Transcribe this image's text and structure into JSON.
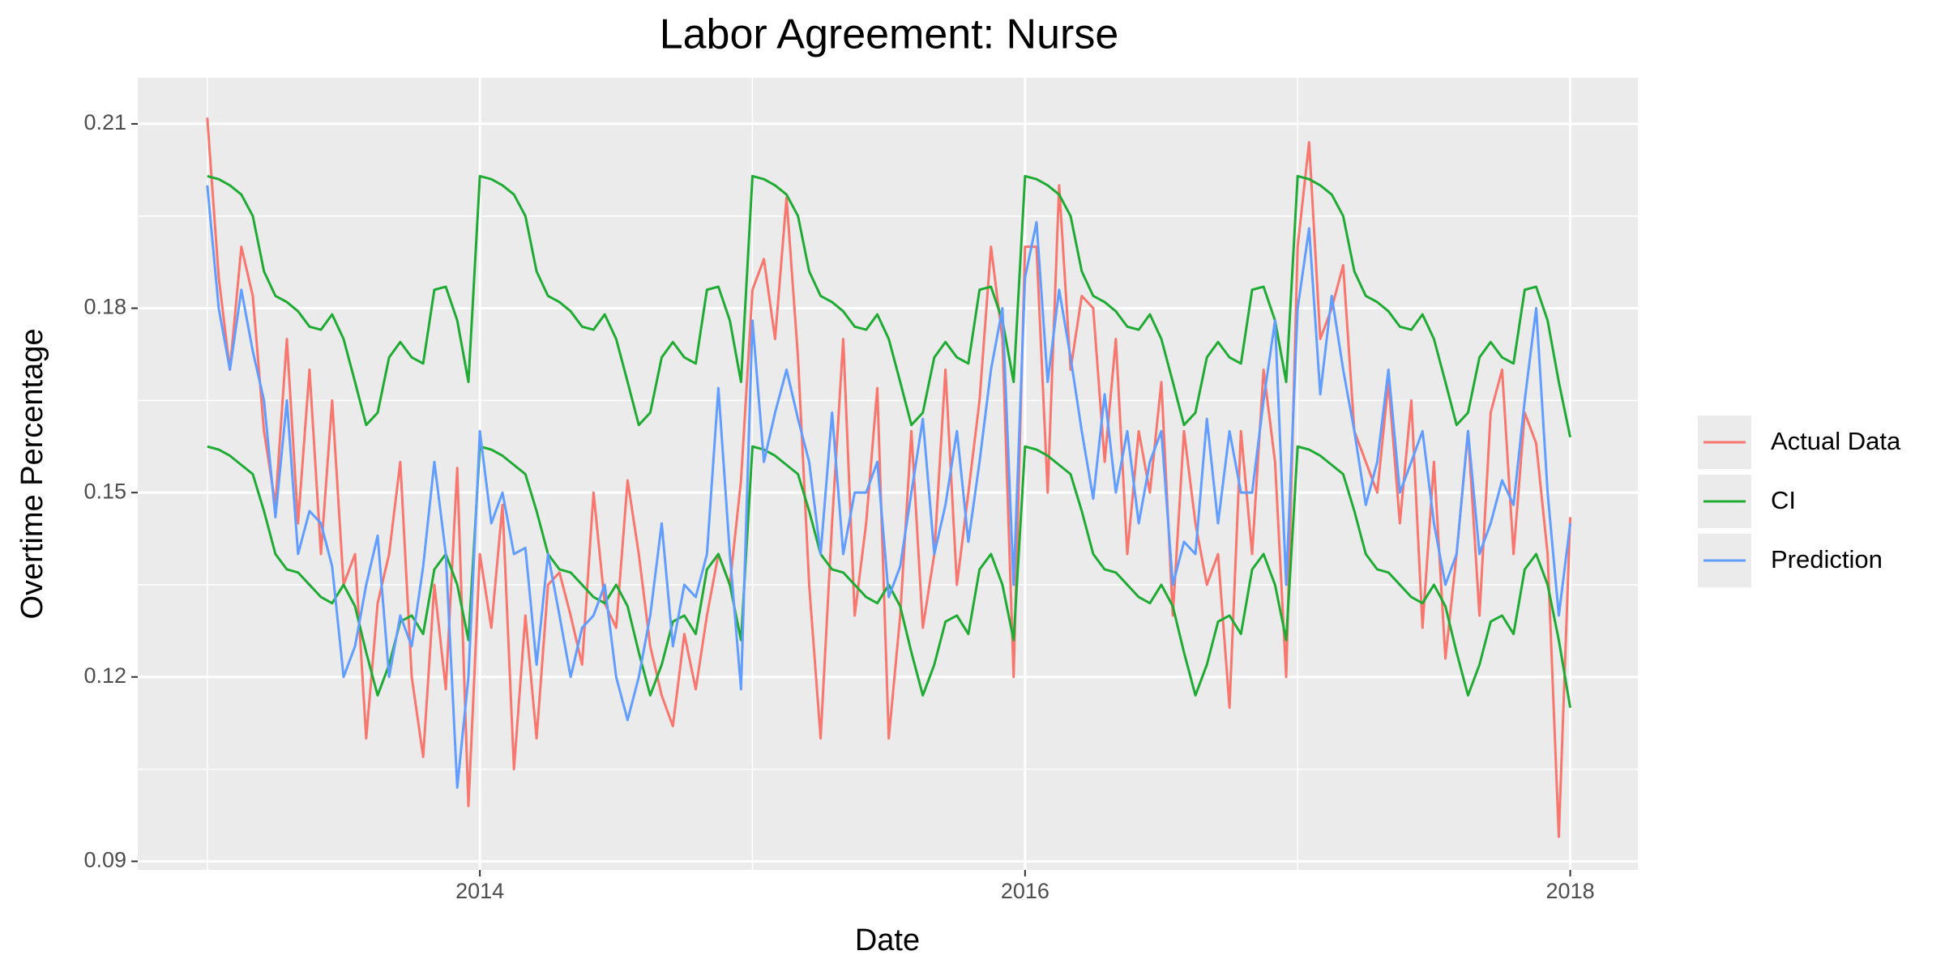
{
  "chart_data": {
    "type": "line",
    "title": "Labor Agreement: Nurse",
    "x_label": "Date",
    "y_label": "Overtime Percentage",
    "x": [
      2013,
      2013.042,
      2013.083,
      2013.125,
      2013.167,
      2013.208,
      2013.25,
      2013.292,
      2013.333,
      2013.375,
      2013.417,
      2013.458,
      2013.5,
      2013.542,
      2013.583,
      2013.625,
      2013.667,
      2013.708,
      2013.75,
      2013.792,
      2013.833,
      2013.875,
      2013.917,
      2013.958,
      2014,
      2014.042,
      2014.083,
      2014.125,
      2014.167,
      2014.208,
      2014.25,
      2014.292,
      2014.333,
      2014.375,
      2014.417,
      2014.458,
      2014.5,
      2014.542,
      2014.583,
      2014.625,
      2014.667,
      2014.708,
      2014.75,
      2014.792,
      2014.833,
      2014.875,
      2014.917,
      2014.958,
      2015,
      2015.042,
      2015.083,
      2015.125,
      2015.167,
      2015.208,
      2015.25,
      2015.292,
      2015.333,
      2015.375,
      2015.417,
      2015.458,
      2015.5,
      2015.542,
      2015.583,
      2015.625,
      2015.667,
      2015.708,
      2015.75,
      2015.792,
      2015.833,
      2015.875,
      2015.917,
      2015.958,
      2016,
      2016.042,
      2016.083,
      2016.125,
      2016.167,
      2016.208,
      2016.25,
      2016.292,
      2016.333,
      2016.375,
      2016.417,
      2016.458,
      2016.5,
      2016.542,
      2016.583,
      2016.625,
      2016.667,
      2016.708,
      2016.75,
      2016.792,
      2016.833,
      2016.875,
      2016.917,
      2016.958,
      2017,
      2017.042,
      2017.083,
      2017.125,
      2017.167,
      2017.208,
      2017.25,
      2017.292,
      2017.333,
      2017.375,
      2017.417,
      2017.458,
      2017.5,
      2017.542,
      2017.583,
      2017.625,
      2017.667,
      2017.708,
      2017.75,
      2017.792,
      2017.833,
      2017.875,
      2017.917,
      2017.958,
      2018
    ],
    "series": [
      {
        "name": "Actual Data",
        "color": "#f8766d",
        "values": [
          0.211,
          0.185,
          0.17,
          0.19,
          0.182,
          0.16,
          0.148,
          0.175,
          0.145,
          0.17,
          0.14,
          0.165,
          0.135,
          0.14,
          0.11,
          0.132,
          0.14,
          0.155,
          0.12,
          0.107,
          0.135,
          0.118,
          0.154,
          0.099,
          0.14,
          0.128,
          0.148,
          0.105,
          0.13,
          0.11,
          0.135,
          0.137,
          0.13,
          0.122,
          0.15,
          0.132,
          0.128,
          0.152,
          0.14,
          0.125,
          0.117,
          0.112,
          0.127,
          0.118,
          0.13,
          0.14,
          0.135,
          0.152,
          0.183,
          0.188,
          0.175,
          0.198,
          0.172,
          0.135,
          0.11,
          0.145,
          0.175,
          0.13,
          0.145,
          0.167,
          0.11,
          0.13,
          0.16,
          0.128,
          0.14,
          0.17,
          0.135,
          0.15,
          0.165,
          0.19,
          0.175,
          0.12,
          0.19,
          0.19,
          0.15,
          0.2,
          0.17,
          0.182,
          0.18,
          0.155,
          0.175,
          0.14,
          0.16,
          0.15,
          0.168,
          0.13,
          0.16,
          0.145,
          0.135,
          0.14,
          0.115,
          0.16,
          0.14,
          0.17,
          0.155,
          0.12,
          0.19,
          0.207,
          0.175,
          0.18,
          0.187,
          0.16,
          0.155,
          0.15,
          0.168,
          0.145,
          0.165,
          0.128,
          0.155,
          0.123,
          0.14,
          0.16,
          0.13,
          0.163,
          0.17,
          0.14,
          0.163,
          0.158,
          0.14,
          0.094,
          0.146
        ]
      },
      {
        "name": "CI",
        "color": "#1fab33",
        "upper": [
          0.2015,
          0.201,
          0.2,
          0.1985,
          0.195,
          0.186,
          0.182,
          0.181,
          0.1795,
          0.177,
          0.1765,
          0.179,
          0.175,
          0.168,
          0.161,
          0.163,
          0.172,
          0.1745,
          0.172,
          0.171,
          0.183,
          0.1835,
          0.178,
          0.168,
          0.2015,
          0.201,
          0.2,
          0.1985,
          0.195,
          0.186,
          0.182,
          0.181,
          0.1795,
          0.177,
          0.1765,
          0.179,
          0.175,
          0.168,
          0.161,
          0.163,
          0.172,
          0.1745,
          0.172,
          0.171,
          0.183,
          0.1835,
          0.178,
          0.168,
          0.2015,
          0.201,
          0.2,
          0.1985,
          0.195,
          0.186,
          0.182,
          0.181,
          0.1795,
          0.177,
          0.1765,
          0.179,
          0.175,
          0.168,
          0.161,
          0.163,
          0.172,
          0.1745,
          0.172,
          0.171,
          0.183,
          0.1835,
          0.178,
          0.168,
          0.2015,
          0.201,
          0.2,
          0.1985,
          0.195,
          0.186,
          0.182,
          0.181,
          0.1795,
          0.177,
          0.1765,
          0.179,
          0.175,
          0.168,
          0.161,
          0.163,
          0.172,
          0.1745,
          0.172,
          0.171,
          0.183,
          0.1835,
          0.178,
          0.168,
          0.2015,
          0.201,
          0.2,
          0.1985,
          0.195,
          0.186,
          0.182,
          0.181,
          0.1795,
          0.177,
          0.1765,
          0.179,
          0.175,
          0.168,
          0.161,
          0.163,
          0.172,
          0.1745,
          0.172,
          0.171,
          0.183,
          0.1835,
          0.178,
          0.168,
          0.159
        ],
        "lower": [
          0.1575,
          0.157,
          0.156,
          0.1545,
          0.153,
          0.147,
          0.14,
          0.1375,
          0.137,
          0.135,
          0.133,
          0.132,
          0.135,
          0.1315,
          0.124,
          0.117,
          0.122,
          0.129,
          0.13,
          0.127,
          0.1375,
          0.14,
          0.135,
          0.126,
          0.1575,
          0.157,
          0.156,
          0.1545,
          0.153,
          0.147,
          0.14,
          0.1375,
          0.137,
          0.135,
          0.133,
          0.132,
          0.135,
          0.1315,
          0.124,
          0.117,
          0.122,
          0.129,
          0.13,
          0.127,
          0.1375,
          0.14,
          0.135,
          0.126,
          0.1575,
          0.157,
          0.156,
          0.1545,
          0.153,
          0.147,
          0.14,
          0.1375,
          0.137,
          0.135,
          0.133,
          0.132,
          0.135,
          0.1315,
          0.124,
          0.117,
          0.122,
          0.129,
          0.13,
          0.127,
          0.1375,
          0.14,
          0.135,
          0.126,
          0.1575,
          0.157,
          0.156,
          0.1545,
          0.153,
          0.147,
          0.14,
          0.1375,
          0.137,
          0.135,
          0.133,
          0.132,
          0.135,
          0.1315,
          0.124,
          0.117,
          0.122,
          0.129,
          0.13,
          0.127,
          0.1375,
          0.14,
          0.135,
          0.126,
          0.1575,
          0.157,
          0.156,
          0.1545,
          0.153,
          0.147,
          0.14,
          0.1375,
          0.137,
          0.135,
          0.133,
          0.132,
          0.135,
          0.1315,
          0.124,
          0.117,
          0.122,
          0.129,
          0.13,
          0.127,
          0.1375,
          0.14,
          0.135,
          0.126,
          0.115
        ]
      },
      {
        "name": "Prediction",
        "color": "#619cff",
        "values": [
          0.2,
          0.18,
          0.17,
          0.183,
          0.173,
          0.165,
          0.146,
          0.165,
          0.14,
          0.147,
          0.145,
          0.138,
          0.12,
          0.125,
          0.135,
          0.143,
          0.12,
          0.13,
          0.125,
          0.138,
          0.155,
          0.14,
          0.102,
          0.12,
          0.16,
          0.145,
          0.15,
          0.14,
          0.141,
          0.122,
          0.14,
          0.13,
          0.12,
          0.128,
          0.13,
          0.135,
          0.12,
          0.113,
          0.12,
          0.13,
          0.145,
          0.125,
          0.135,
          0.133,
          0.14,
          0.167,
          0.14,
          0.118,
          0.178,
          0.155,
          0.163,
          0.17,
          0.162,
          0.155,
          0.14,
          0.163,
          0.14,
          0.15,
          0.15,
          0.155,
          0.133,
          0.138,
          0.15,
          0.162,
          0.14,
          0.148,
          0.16,
          0.142,
          0.155,
          0.17,
          0.18,
          0.135,
          0.185,
          0.194,
          0.168,
          0.183,
          0.172,
          0.16,
          0.149,
          0.166,
          0.15,
          0.16,
          0.145,
          0.155,
          0.16,
          0.135,
          0.142,
          0.14,
          0.162,
          0.145,
          0.16,
          0.15,
          0.15,
          0.165,
          0.178,
          0.135,
          0.18,
          0.193,
          0.166,
          0.182,
          0.17,
          0.16,
          0.148,
          0.155,
          0.17,
          0.15,
          0.155,
          0.16,
          0.145,
          0.135,
          0.14,
          0.16,
          0.14,
          0.145,
          0.152,
          0.148,
          0.165,
          0.18,
          0.15,
          0.13,
          0.145
        ]
      }
    ],
    "xlim": [
      2012.745,
      2018.248
    ],
    "xticks": [
      2014,
      2016,
      2018
    ],
    "xminor": [
      2013,
      2015,
      2017
    ],
    "ylim": [
      0.0886,
      0.2175
    ],
    "yticks": [
      0.09,
      0.12,
      0.15,
      0.18,
      0.21
    ],
    "yminor": [
      0.105,
      0.135,
      0.165,
      0.195
    ],
    "grid": true,
    "legend": "right"
  }
}
